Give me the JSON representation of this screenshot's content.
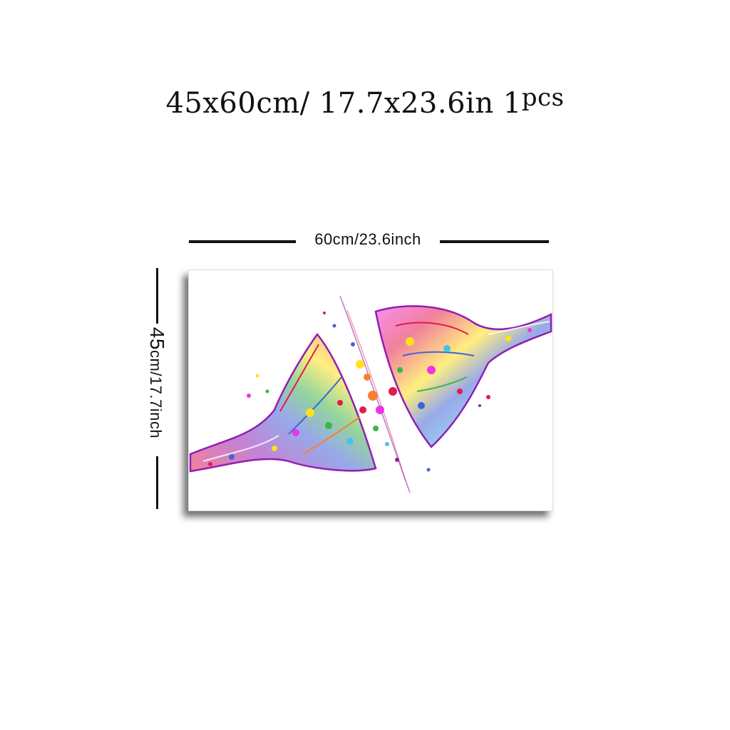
{
  "title": {
    "main": "45x60cm/ 17.7x23.6in 1",
    "suffix": "pcs"
  },
  "dimensions": {
    "width_label": "60cm/23.6inch",
    "height_label_main": "45",
    "height_label_rest": "cm/17.7inch"
  },
  "product": {
    "artwork": "watercolor-synapse-illustration",
    "colors": [
      "#e6194b",
      "#f58231",
      "#ffe119",
      "#3cb44b",
      "#4363d8",
      "#911eb4",
      "#f032e6",
      "#46c4e8"
    ]
  }
}
